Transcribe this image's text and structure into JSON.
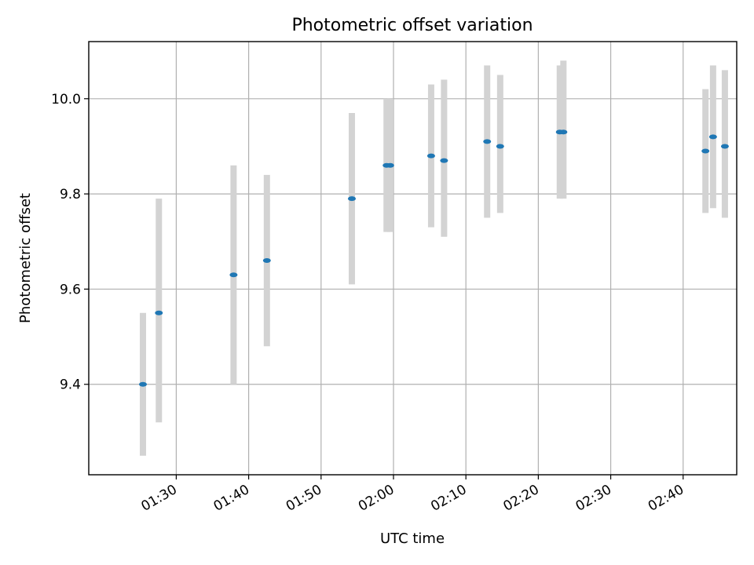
{
  "chart_data": {
    "type": "scatter",
    "title": "Photometric offset variation",
    "xlabel": "UTC time",
    "ylabel": "Photometric offset",
    "x_tick_labels": [
      "01:30",
      "01:40",
      "01:50",
      "02:00",
      "02:10",
      "02:20",
      "02:30",
      "02:40"
    ],
    "y_tick_labels": [
      "9.4",
      "9.6",
      "9.8",
      "10.0"
    ],
    "xlim": [
      "01:17:55",
      "02:47:24"
    ],
    "ylim": [
      9.21,
      10.12
    ],
    "grid": true,
    "marker_color": "#1f77b4",
    "errorbar_color": "#d3d3d3",
    "points": [
      {
        "x": "01:25:24",
        "y": 9.4,
        "ylow": 9.25,
        "yhigh": 9.55
      },
      {
        "x": "01:27:36",
        "y": 9.55,
        "ylow": 9.32,
        "yhigh": 9.79
      },
      {
        "x": "01:37:55",
        "y": 9.63,
        "ylow": 9.4,
        "yhigh": 9.86
      },
      {
        "x": "01:42:31",
        "y": 9.66,
        "ylow": 9.48,
        "yhigh": 9.84
      },
      {
        "x": "01:54:15",
        "y": 9.79,
        "ylow": 9.61,
        "yhigh": 9.97
      },
      {
        "x": "01:59:03",
        "y": 9.86,
        "ylow": 9.72,
        "yhigh": 10.0
      },
      {
        "x": "01:59:33",
        "y": 9.86,
        "ylow": 9.72,
        "yhigh": 10.0
      },
      {
        "x": "02:05:12",
        "y": 9.88,
        "ylow": 9.73,
        "yhigh": 10.03
      },
      {
        "x": "02:06:59",
        "y": 9.87,
        "ylow": 9.71,
        "yhigh": 10.04
      },
      {
        "x": "02:12:56",
        "y": 9.91,
        "ylow": 9.75,
        "yhigh": 10.07
      },
      {
        "x": "02:14:44",
        "y": 9.9,
        "ylow": 9.76,
        "yhigh": 10.05
      },
      {
        "x": "02:22:58",
        "y": 9.93,
        "ylow": 9.79,
        "yhigh": 10.07
      },
      {
        "x": "02:23:28",
        "y": 9.93,
        "ylow": 9.79,
        "yhigh": 10.08
      },
      {
        "x": "02:43:05",
        "y": 9.89,
        "ylow": 9.76,
        "yhigh": 10.02
      },
      {
        "x": "02:44:08",
        "y": 9.92,
        "ylow": 9.77,
        "yhigh": 10.07
      },
      {
        "x": "02:45:46",
        "y": 9.9,
        "ylow": 9.75,
        "yhigh": 10.06
      }
    ]
  }
}
